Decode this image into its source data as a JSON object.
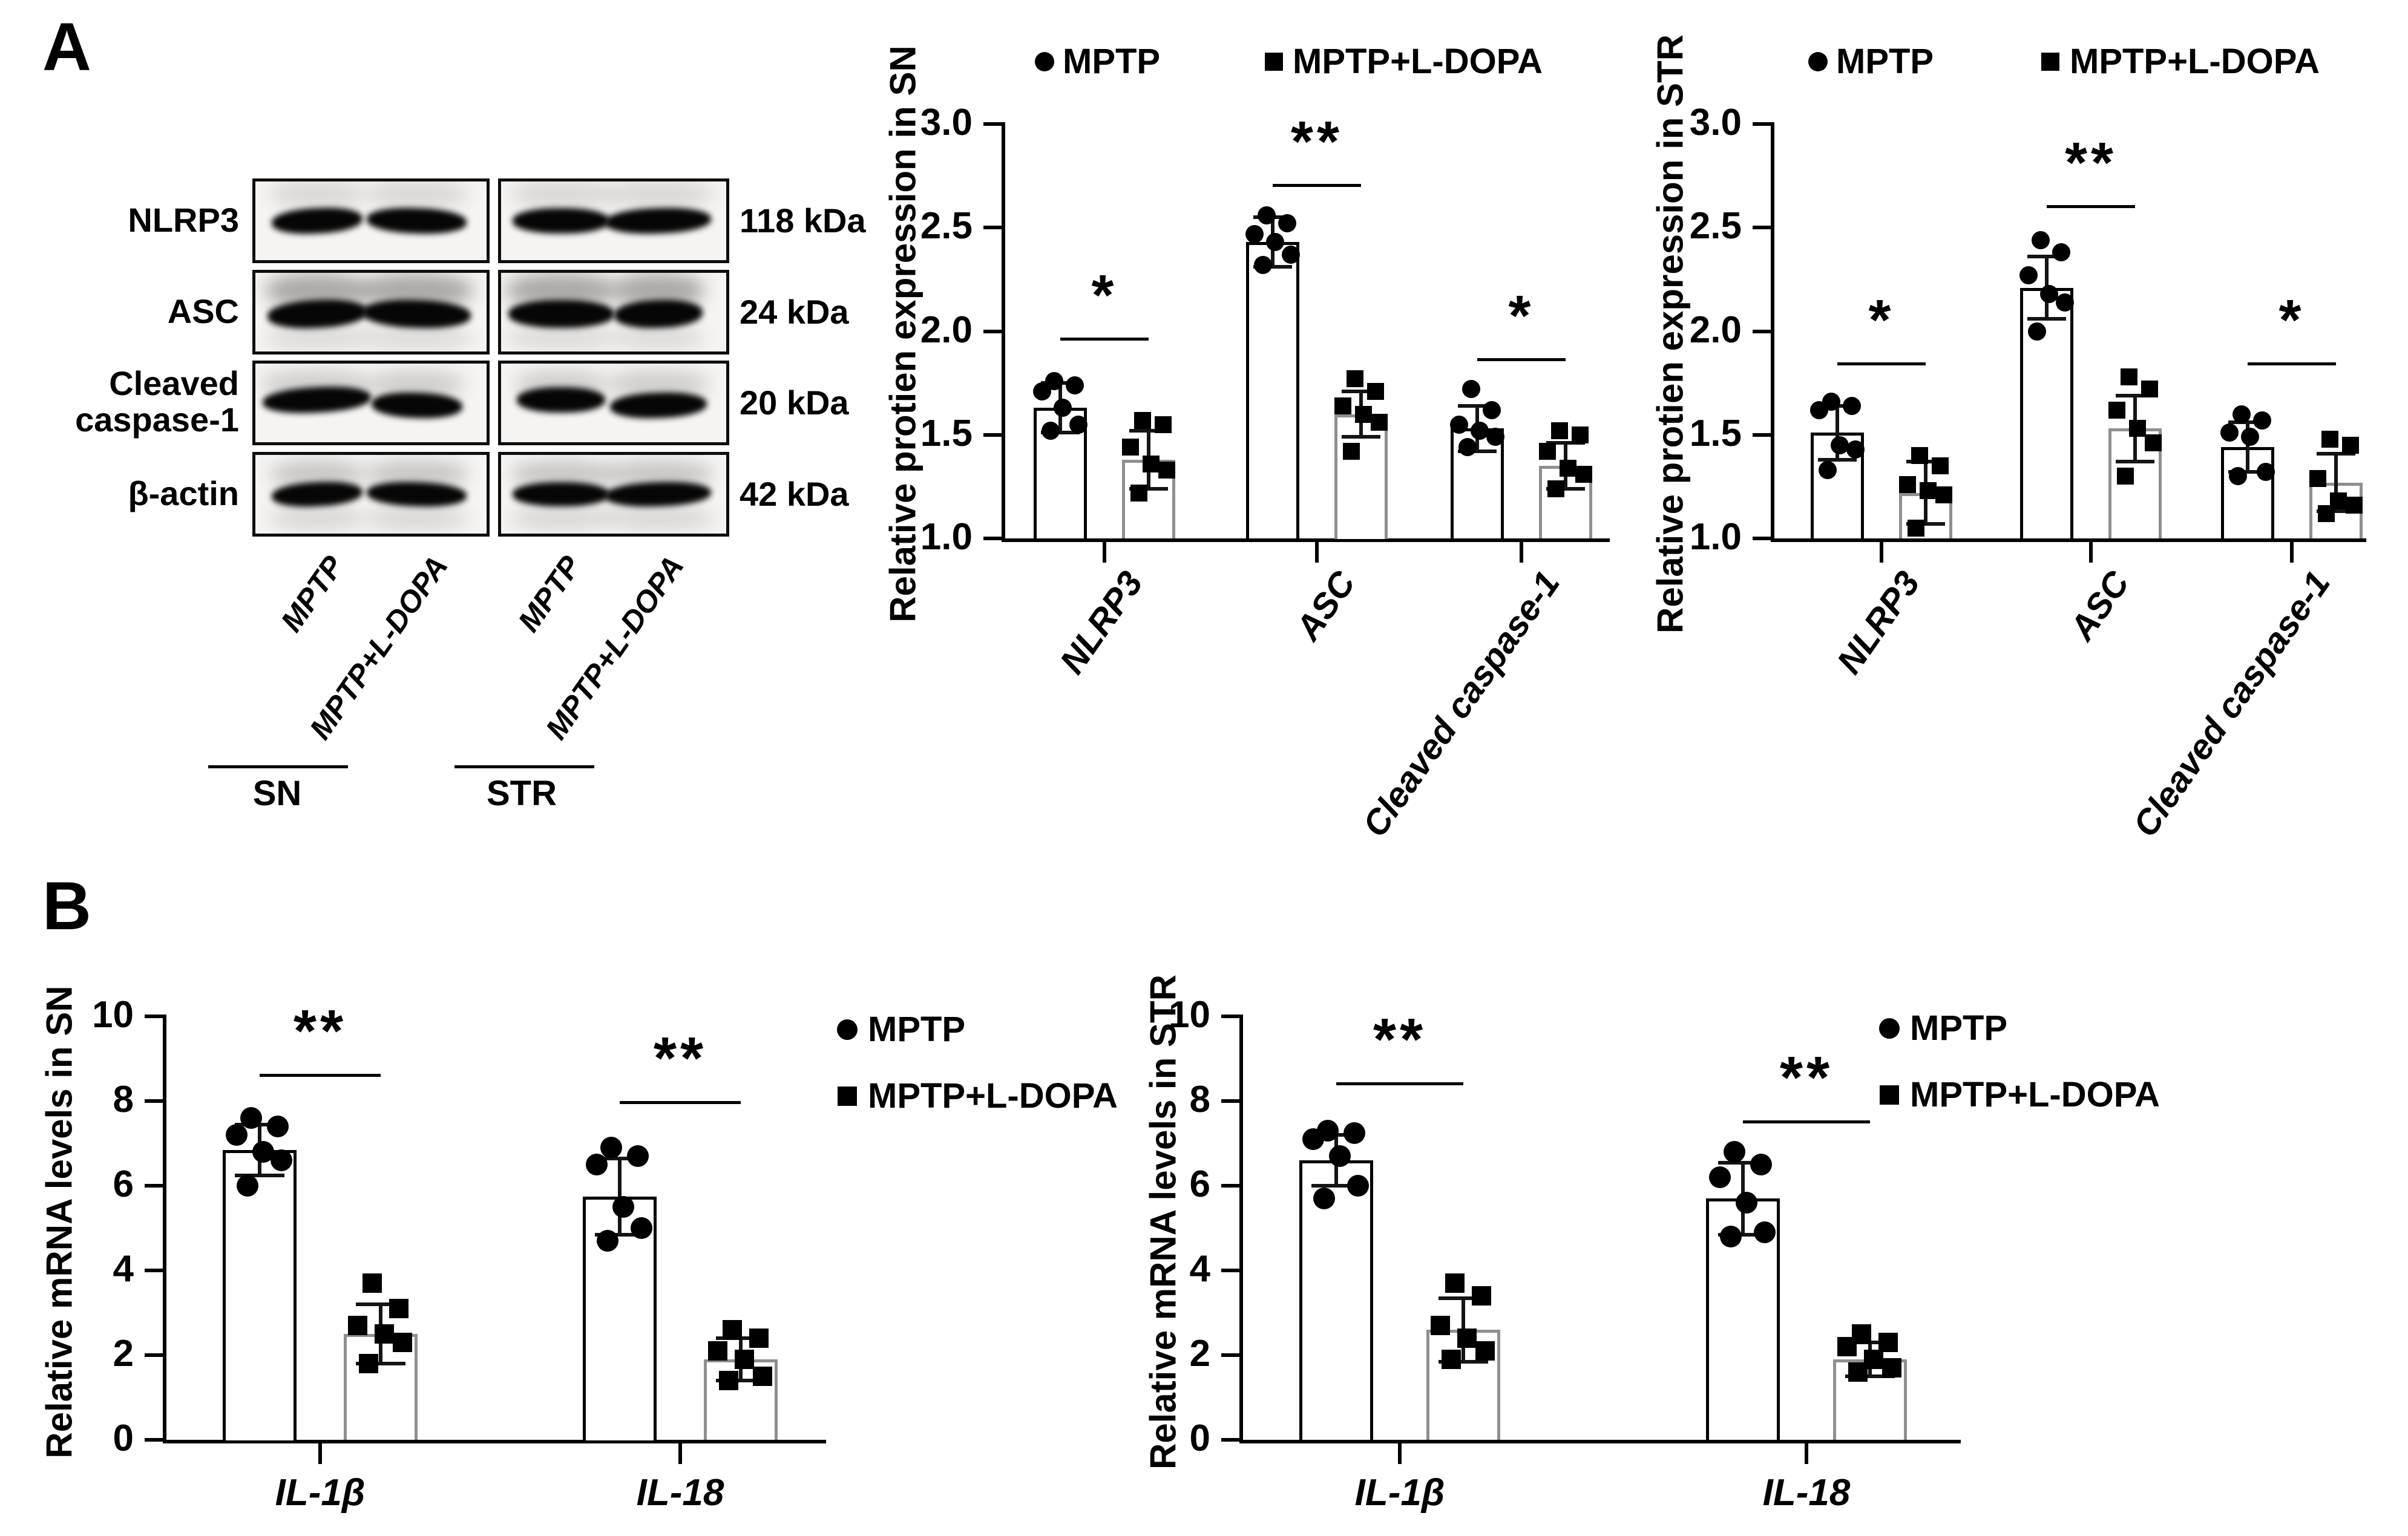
{
  "figure": {
    "panel_a_label": "A",
    "panel_b_label": "B",
    "blots": {
      "rows": [
        {
          "target": "NLRP3",
          "kda": "118 kDa"
        },
        {
          "target": "ASC",
          "kda": "24 kDa"
        },
        {
          "target": "Cleaved caspase-1",
          "kda": "20 kDa"
        },
        {
          "target": "β-actin",
          "kda": "42 kDa"
        }
      ],
      "lane_labels": [
        "MPTP",
        "MPTP+L-DOPA"
      ],
      "region_labels": [
        "SN",
        "STR"
      ]
    }
  },
  "chart_data": [
    {
      "id": "protein_sn",
      "type": "bar",
      "title": "",
      "ylabel": "Relative protien expression in SN",
      "ylim": [
        1.0,
        3.0
      ],
      "grid": false,
      "legend_position": "top",
      "yticks": [
        {
          "v": 3.0,
          "label": "3.0"
        },
        {
          "v": 2.5,
          "label": "2.5"
        },
        {
          "v": 2.0,
          "label": "2.0"
        },
        {
          "v": 1.5,
          "label": "1.5"
        },
        {
          "v": 1.0,
          "label": "1.0"
        }
      ],
      "categories": [
        "NLRP3",
        "ASC",
        "Cleaved caspase-1"
      ],
      "legend": [
        "MPTP",
        "MPTP+L-DOPA"
      ],
      "series": [
        {
          "name": "MPTP",
          "marker": "circle",
          "means": [
            1.63,
            2.43,
            1.53
          ],
          "sd": [
            0.12,
            0.12,
            0.11
          ],
          "points": [
            [
              1.76,
              1.74,
              1.71,
              1.63,
              1.55,
              1.52
            ],
            [
              2.56,
              2.52,
              2.47,
              2.43,
              2.37,
              2.32
            ],
            [
              1.72,
              1.62,
              1.55,
              1.52,
              1.49,
              1.44
            ]
          ]
        },
        {
          "name": "MPTP+L-DOPA",
          "marker": "square",
          "means": [
            1.38,
            1.6,
            1.35
          ],
          "sd": [
            0.14,
            0.11,
            0.11
          ],
          "points": [
            [
              1.57,
              1.55,
              1.44,
              1.36,
              1.33,
              1.22
            ],
            [
              1.77,
              1.71,
              1.64,
              1.6,
              1.56,
              1.42
            ],
            [
              1.52,
              1.5,
              1.42,
              1.34,
              1.31,
              1.24
            ]
          ]
        }
      ],
      "significance": [
        {
          "label": "*",
          "y": 1.97
        },
        {
          "label": "**",
          "y": 2.71
        },
        {
          "label": "*",
          "y": 1.87
        }
      ]
    },
    {
      "id": "protein_str",
      "type": "bar",
      "title": "",
      "ylabel": "Relative protien expression in STR",
      "ylim": [
        1.0,
        3.0
      ],
      "grid": false,
      "legend_position": "top",
      "yticks": [
        {
          "v": 3.0,
          "label": "3.0"
        },
        {
          "v": 2.5,
          "label": "2.5"
        },
        {
          "v": 2.0,
          "label": "2.0"
        },
        {
          "v": 1.5,
          "label": "1.5"
        },
        {
          "v": 1.0,
          "label": "1.0"
        }
      ],
      "categories": [
        "NLRP3",
        "ASC",
        "Cleaved caspase-1"
      ],
      "legend": [
        "MPTP",
        "MPTP+L-DOPA"
      ],
      "series": [
        {
          "name": "MPTP",
          "marker": "circle",
          "means": [
            1.51,
            2.21,
            1.44
          ],
          "sd": [
            0.13,
            0.15,
            0.12
          ],
          "points": [
            [
              1.66,
              1.64,
              1.62,
              1.45,
              1.43,
              1.33
            ],
            [
              2.44,
              2.38,
              2.27,
              2.18,
              2.14,
              2.0
            ],
            [
              1.6,
              1.57,
              1.51,
              1.49,
              1.32,
              1.3
            ]
          ]
        },
        {
          "name": "MPTP+L-DOPA",
          "marker": "square",
          "means": [
            1.22,
            1.53,
            1.27
          ],
          "sd": [
            0.15,
            0.16,
            0.14
          ],
          "points": [
            [
              1.4,
              1.35,
              1.26,
              1.23,
              1.21,
              1.05
            ],
            [
              1.78,
              1.72,
              1.62,
              1.53,
              1.46,
              1.3
            ],
            [
              1.48,
              1.45,
              1.29,
              1.18,
              1.16,
              1.12
            ]
          ]
        }
      ],
      "significance": [
        {
          "label": "*",
          "y": 1.85
        },
        {
          "label": "**",
          "y": 2.61
        },
        {
          "label": "*",
          "y": 1.85
        }
      ]
    },
    {
      "id": "mrna_sn",
      "type": "bar",
      "title": "",
      "ylabel": "Relative mRNA levels in SN",
      "ylim": [
        0,
        10
      ],
      "grid": false,
      "legend_position": "right",
      "yticks": [
        {
          "v": 10,
          "label": "10"
        },
        {
          "v": 8,
          "label": "8"
        },
        {
          "v": 6,
          "label": "6"
        },
        {
          "v": 4,
          "label": "4"
        },
        {
          "v": 2,
          "label": "2"
        },
        {
          "v": 0,
          "label": "0"
        }
      ],
      "categories": [
        "IL-1β",
        "IL-18"
      ],
      "legend": [
        "MPTP",
        "MPTP+L-DOPA"
      ],
      "series": [
        {
          "name": "MPTP",
          "marker": "circle",
          "means": [
            6.85,
            5.75
          ],
          "sd": [
            0.6,
            0.9
          ],
          "points": [
            [
              7.6,
              7.4,
              7.2,
              6.8,
              6.6,
              6.0
            ],
            [
              6.9,
              6.7,
              6.5,
              5.5,
              5.0,
              4.7
            ]
          ]
        },
        {
          "name": "MPTP+L-DOPA",
          "marker": "square",
          "means": [
            2.5,
            1.9
          ],
          "sd": [
            0.7,
            0.5
          ],
          "points": [
            [
              3.7,
              3.1,
              2.7,
              2.5,
              2.3,
              1.8
            ],
            [
              2.6,
              2.4,
              2.1,
              1.9,
              1.5,
              1.4
            ]
          ]
        }
      ],
      "significance": [
        {
          "label": "**",
          "y": 8.65
        },
        {
          "label": "**",
          "y": 8.0
        }
      ]
    },
    {
      "id": "mrna_str",
      "type": "bar",
      "title": "",
      "ylabel": "Relative mRNA levels in STR",
      "ylim": [
        0,
        10
      ],
      "grid": false,
      "legend_position": "right",
      "yticks": [
        {
          "v": 10,
          "label": "10"
        },
        {
          "v": 8,
          "label": "8"
        },
        {
          "v": 6,
          "label": "6"
        },
        {
          "v": 4,
          "label": "4"
        },
        {
          "v": 2,
          "label": "2"
        },
        {
          "v": 0,
          "label": "0"
        }
      ],
      "categories": [
        "IL-1β",
        "IL-18"
      ],
      "legend": [
        "MPTP",
        "MPTP+L-DOPA"
      ],
      "series": [
        {
          "name": "MPTP",
          "marker": "circle",
          "means": [
            6.6,
            5.7
          ],
          "sd": [
            0.6,
            0.85
          ],
          "points": [
            [
              7.3,
              7.25,
              7.1,
              6.7,
              6.0,
              5.7
            ],
            [
              6.8,
              6.5,
              6.2,
              5.6,
              4.9,
              4.8
            ]
          ]
        },
        {
          "name": "MPTP+L-DOPA",
          "marker": "square",
          "means": [
            2.6,
            1.9
          ],
          "sd": [
            0.75,
            0.4
          ],
          "points": [
            [
              3.7,
              3.4,
              2.7,
              2.4,
              2.1,
              1.9
            ],
            [
              2.5,
              2.3,
              2.2,
              1.9,
              1.7,
              1.6
            ]
          ]
        }
      ],
      "significance": [
        {
          "label": "**",
          "y": 8.45
        },
        {
          "label": "**",
          "y": 7.55
        }
      ]
    }
  ]
}
